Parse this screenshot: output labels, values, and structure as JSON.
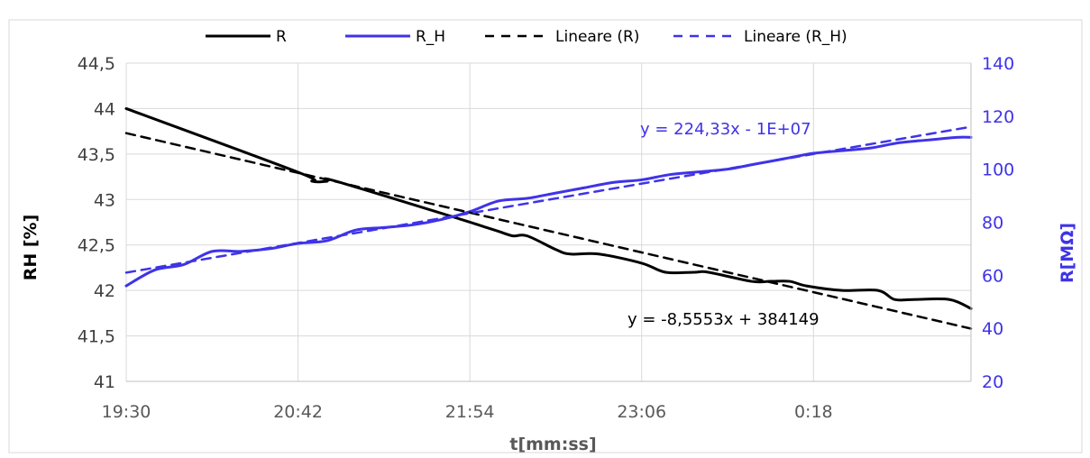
{
  "chart_data": {
    "type": "line",
    "xlabel": "t[mm:ss]",
    "ylabel_left": "RH [%]",
    "ylabel_right": "R[MΩ]",
    "x_tick_labels": [
      "19:30",
      "20:42",
      "21:54",
      "23:06",
      "0:18"
    ],
    "x_tick_minutes": [
      0,
      72,
      144,
      216,
      288
    ],
    "x_range_minutes": [
      0,
      354
    ],
    "y_left": {
      "min": 41,
      "max": 44.5,
      "ticks": [
        "41",
        "41,5",
        "42",
        "42,5",
        "43",
        "43,5",
        "44",
        "44,5"
      ],
      "tick_values": [
        41,
        41.5,
        42,
        42.5,
        43,
        43.5,
        44,
        44.5
      ]
    },
    "y_right": {
      "min": 20,
      "max": 140,
      "ticks": [
        "20",
        "40",
        "60",
        "80",
        "100",
        "120",
        "140"
      ],
      "tick_values": [
        20,
        40,
        60,
        80,
        100,
        120,
        140
      ]
    },
    "grid": true,
    "legend_position": "top",
    "legend": [
      {
        "label": "R",
        "color": "#000000",
        "dash": false
      },
      {
        "label": "R_H",
        "color": "#3f33e8",
        "dash": false
      },
      {
        "label": "Lineare (R)",
        "color": "#000000",
        "dash": true
      },
      {
        "label": "Lineare (R_H)",
        "color": "#3f33e8",
        "dash": true
      }
    ],
    "series": [
      {
        "name": "R",
        "axis": "left",
        "color": "#000000",
        "x_minutes": [
          0,
          72,
          78,
          84,
          88,
          138,
          150,
          156,
          162,
          168,
          180,
          186,
          198,
          216,
          226,
          238,
          244,
          262,
          270,
          278,
          285,
          300,
          315,
          322,
          330,
          345,
          354
        ],
        "y": [
          44,
          43.3,
          43.2,
          43.2,
          43.2,
          42.8,
          42.7,
          42.65,
          42.6,
          42.6,
          42.45,
          42.4,
          42.4,
          42.3,
          42.2,
          42.2,
          42.2,
          42.1,
          42.1,
          42.1,
          42.05,
          42.0,
          42.0,
          41.9,
          41.9,
          41.9,
          41.8
        ]
      },
      {
        "name": "R_H",
        "axis": "right",
        "color": "#3f33e8",
        "x_minutes": [
          0,
          12,
          24,
          36,
          48,
          60,
          72,
          84,
          96,
          108,
          120,
          132,
          144,
          156,
          168,
          180,
          192,
          204,
          216,
          228,
          240,
          252,
          264,
          276,
          288,
          300,
          312,
          324,
          336,
          348,
          354
        ],
        "y": [
          56,
          62,
          64,
          69,
          69,
          70,
          72,
          73,
          77,
          78,
          79,
          81,
          84,
          88,
          89,
          91,
          93,
          95,
          96,
          98,
          99,
          100,
          102,
          104,
          106,
          107,
          108,
          110,
          111,
          112,
          112
        ]
      },
      {
        "name": "Lineare (R)",
        "axis": "left",
        "color": "#000000",
        "dash": true,
        "x_minutes": [
          0,
          354
        ],
        "y": [
          43.73,
          41.58
        ]
      },
      {
        "name": "Lineare (R_H)",
        "axis": "right",
        "color": "#3f33e8",
        "dash": true,
        "x_minutes": [
          0,
          354
        ],
        "y": [
          61,
          116
        ]
      }
    ],
    "annotations": [
      {
        "text": "y = 224,33x - 1E+07",
        "color": "#3f33e8"
      },
      {
        "text": "y = -8,5553x + 384149",
        "color": "#000000"
      }
    ]
  }
}
